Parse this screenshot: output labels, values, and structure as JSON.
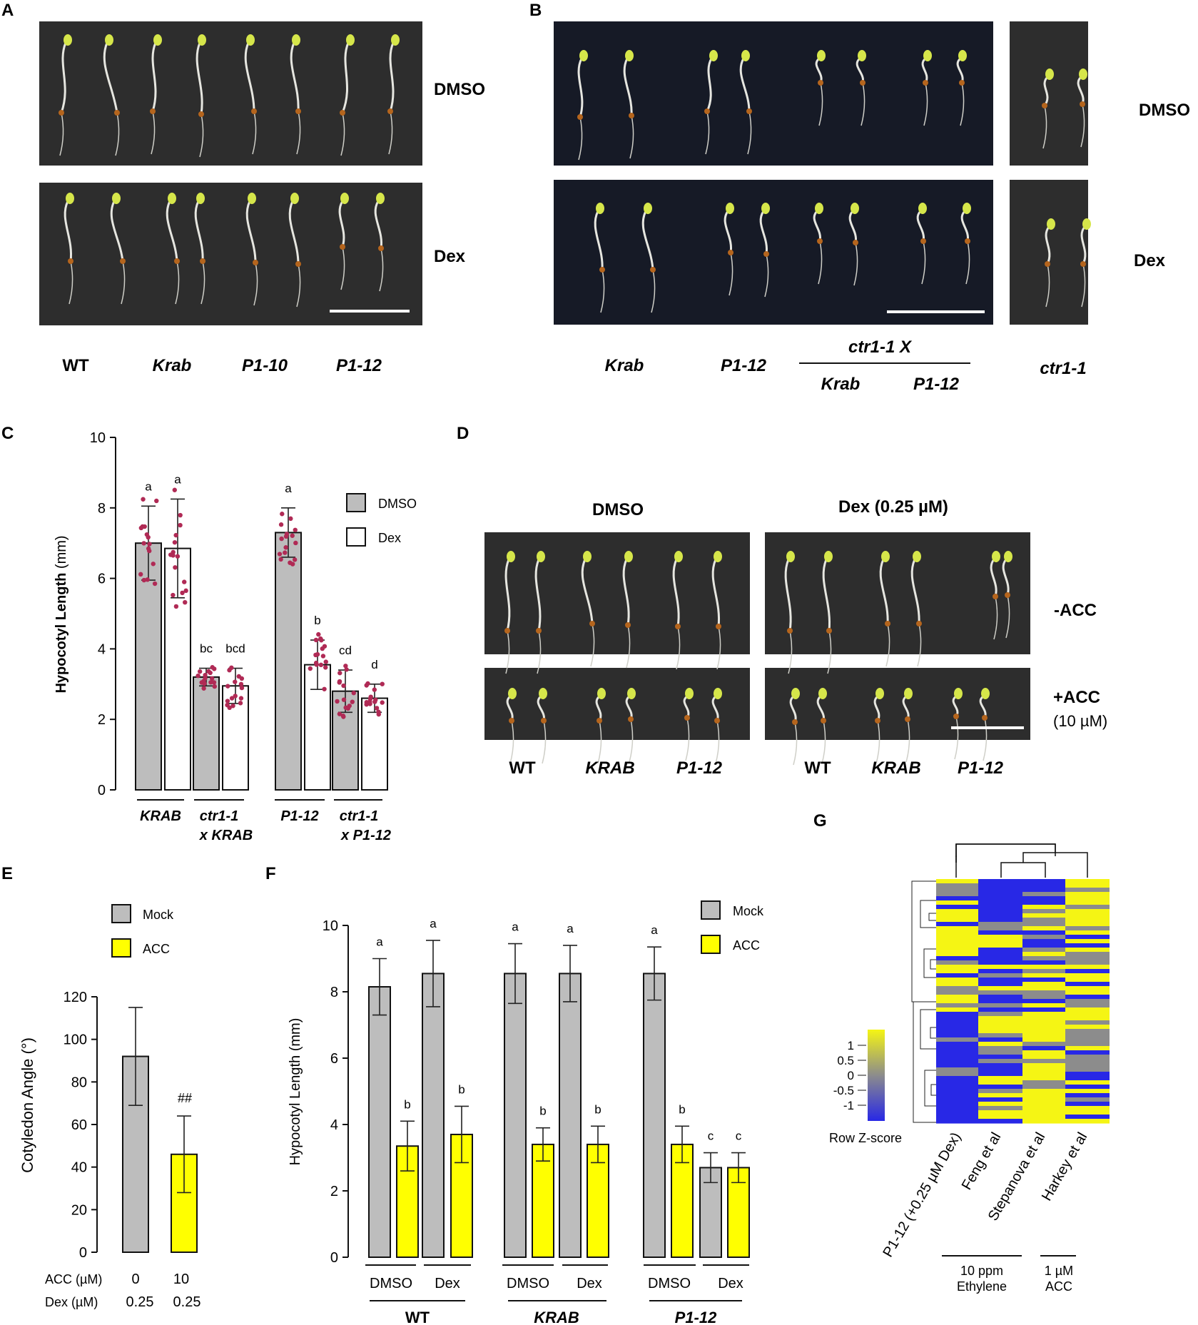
{
  "panelA": {
    "letter": "A",
    "conditions": [
      "DMSO",
      "Dex"
    ],
    "genotypes": [
      "WT",
      "Krab",
      "P1-10",
      "P1-12"
    ]
  },
  "panelB": {
    "letter": "B",
    "conditions": [
      "DMSO",
      "Dex"
    ],
    "genotypes": [
      "Krab",
      "P1-12"
    ],
    "cross_label": "ctr1-1 X",
    "cross_genotypes": [
      "Krab",
      "P1-12"
    ],
    "side_genotype": "ctr1-1"
  },
  "panelC": {
    "letter": "C",
    "legend": [
      "DMSO",
      "Dex"
    ],
    "group_labels": [
      "KRAB",
      "ctr1-1",
      "x KRAB",
      "P1-12",
      "ctr1-1",
      "x P1-12"
    ]
  },
  "panelD": {
    "letter": "D",
    "headers": [
      "DMSO",
      "Dex (0.25 µM)"
    ],
    "rows": [
      "-ACC",
      "+ACC",
      "(10 µM)"
    ],
    "genotypes": [
      "WT",
      "KRAB",
      "P1-12",
      "WT",
      "KRAB",
      "P1-12"
    ]
  },
  "panelE": {
    "letter": "E",
    "legend": [
      "Mock",
      "ACC"
    ],
    "row_labels": [
      "ACC (µM)",
      "Dex (µM)"
    ],
    "acc_values": [
      "0",
      "10"
    ],
    "dex_values": [
      "0.25",
      "0.25"
    ],
    "annotation": "##"
  },
  "panelF": {
    "letter": "F",
    "legend": [
      "Mock",
      "ACC"
    ],
    "treatments": [
      "DMSO",
      "Dex",
      "DMSO",
      "Dex",
      "DMSO",
      "Dex"
    ],
    "genotypes": [
      "WT",
      "KRAB",
      "P1-12"
    ]
  },
  "panelG": {
    "letter": "G",
    "scale_title": "Row Z-score",
    "scale_ticks": [
      "1",
      "0.5",
      "0",
      "-0.5",
      "-1"
    ],
    "columns": [
      "P1-12 (+0.25 µM Dex)",
      "Feng et al",
      "Stepanova et al",
      "Harkey et al"
    ],
    "groups": [
      [
        "10 ppm",
        "Ethylene"
      ],
      [
        "1 µM",
        "ACC"
      ]
    ],
    "colors": {
      "low": "#2828e6",
      "mid": "#8c8c8c",
      "high": "#f5f514"
    }
  },
  "colors": {
    "grey": "#bdbdbd",
    "yellow": "#ffff00",
    "dots": "#b02a55",
    "photo_bg": "#2d2d2d",
    "photo_bg_blue": "#161a26"
  },
  "chart_data": [
    {
      "type": "bar",
      "panel": "C",
      "ylabel": "Hypocotyl Length (mm)",
      "ylim": [
        0,
        10
      ],
      "yticks": [
        0,
        2,
        4,
        6,
        8,
        10
      ],
      "categories": [
        "KRAB",
        "ctr1-1 x KRAB",
        "P1-12",
        "ctr1-1 x P1-12"
      ],
      "series": [
        {
          "name": "DMSO",
          "values": [
            7.0,
            3.2,
            7.3,
            2.8
          ],
          "errors": [
            1.05,
            0.25,
            0.7,
            0.6
          ],
          "letters": [
            "a",
            "bc",
            "a",
            "cd"
          ]
        },
        {
          "name": "Dex",
          "values": [
            6.85,
            2.95,
            3.55,
            2.6
          ],
          "errors": [
            1.4,
            0.5,
            0.7,
            0.4
          ],
          "letters": [
            "a",
            "bcd",
            "b",
            "d"
          ]
        }
      ]
    },
    {
      "type": "bar",
      "panel": "E",
      "ylabel": "Cotyledon Angle (°)",
      "ylim": [
        0,
        120
      ],
      "yticks": [
        0,
        20,
        40,
        60,
        80,
        100,
        120
      ],
      "categories": [
        "Mock",
        "ACC"
      ],
      "values": [
        92,
        46
      ],
      "errors": [
        23,
        18
      ]
    },
    {
      "type": "bar",
      "panel": "F",
      "ylabel": "Hypocotyl Length (mm)",
      "ylim": [
        0,
        10
      ],
      "yticks": [
        0,
        2,
        4,
        6,
        8,
        10
      ],
      "categories": [
        "WT DMSO",
        "WT Dex",
        "KRAB DMSO",
        "KRAB Dex",
        "P1-12 DMSO",
        "P1-12 Dex"
      ],
      "series": [
        {
          "name": "Mock",
          "values": [
            8.15,
            8.55,
            8.55,
            8.55,
            8.55,
            2.7
          ],
          "errors": [
            0.85,
            1.0,
            0.9,
            0.85,
            0.8,
            0.45
          ],
          "letters": [
            "a",
            "a",
            "a",
            "a",
            "a",
            "c"
          ]
        },
        {
          "name": "ACC",
          "values": [
            3.35,
            3.7,
            3.4,
            3.4,
            3.4,
            2.7
          ],
          "errors": [
            0.75,
            0.85,
            0.5,
            0.55,
            0.55,
            0.45
          ],
          "letters": [
            "b",
            "b",
            "b",
            "b",
            "b",
            "c"
          ]
        }
      ]
    }
  ]
}
